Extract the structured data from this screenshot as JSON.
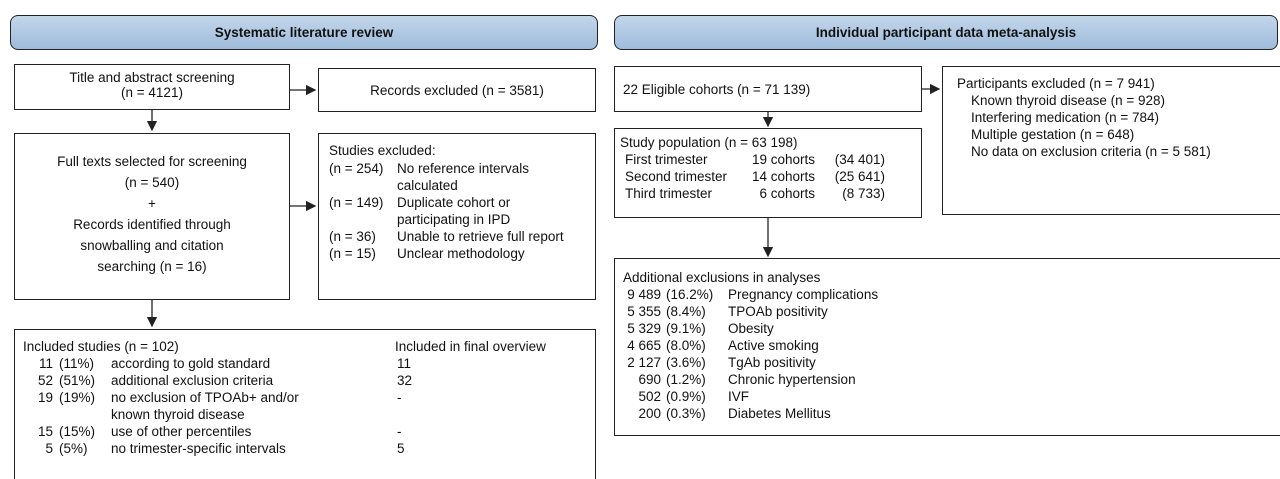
{
  "left": {
    "header": "Systematic literature review",
    "screening": {
      "title": "Title and abstract screening",
      "n": "(n = 4121)"
    },
    "records_excluded": "Records excluded (n = 3581)",
    "full_texts": {
      "title": "Full texts selected for screening",
      "n": "(n = 540)",
      "plus": "+",
      "records": "Records identified through snowballing and citation searching (n = 16)"
    },
    "studies_excluded": {
      "title": "Studies excluded:",
      "rows": [
        {
          "n": "(n = 254)",
          "reason": "No reference intervals calculated"
        },
        {
          "n": "(n = 149)",
          "reason": "Duplicate cohort or participating in IPD"
        },
        {
          "n": "(n = 36)",
          "reason": "Unable to retrieve full report"
        },
        {
          "n": "(n = 15)",
          "reason": "Unclear methodology"
        }
      ]
    },
    "included": {
      "title": "Included studies (n = 102)",
      "final_header": "Included in final overview",
      "rows": [
        {
          "count": "11",
          "pct": "(11%)",
          "desc": "according to gold standard",
          "final": "11"
        },
        {
          "count": "52",
          "pct": "(51%)",
          "desc": "additional exclusion criteria",
          "final": "32"
        },
        {
          "count": "19",
          "pct": "(19%)",
          "desc": "no exclusion of TPOAb+ and/or known thyroid disease",
          "final": "-"
        },
        {
          "count": "15",
          "pct": "(15%)",
          "desc": "use of other percentiles",
          "final": "-"
        },
        {
          "count": "5",
          "pct": "(5%)",
          "desc": "no trimester-specific intervals",
          "final": "5"
        }
      ]
    }
  },
  "right": {
    "header": "Individual participant data meta-analysis",
    "eligible": "22 Eligible cohorts (n = 71 139)",
    "participants_excluded": {
      "title": "Participants excluded (n = 7 941)",
      "items": [
        "Known thyroid disease (n = 928)",
        "Interfering medication (n = 784)",
        "Multiple gestation (n = 648)",
        "No data on exclusion criteria (n = 5 581)"
      ]
    },
    "study_population": {
      "title": "Study population (n = 63 198)",
      "rows": [
        {
          "stage": "First trimester",
          "cohorts": "19 cohorts",
          "n": "(34 401)"
        },
        {
          "stage": "Second trimester",
          "cohorts": "14 cohorts",
          "n": "(25 641)"
        },
        {
          "stage": "Third trimester",
          "cohorts": "6 cohorts",
          "n": "(8 733)"
        }
      ]
    },
    "additional": {
      "title": "Additional exclusions in analyses",
      "rows": [
        {
          "n": "9 489",
          "pct": "(16.2%)",
          "reason": "Pregnancy complications"
        },
        {
          "n": "5 355",
          "pct": "(8.4%)",
          "reason": "TPOAb positivity"
        },
        {
          "n": "5 329",
          "pct": "(9.1%)",
          "reason": "Obesity"
        },
        {
          "n": "4 665",
          "pct": "(8.0%)",
          "reason": "Active smoking"
        },
        {
          "n": "2 127",
          "pct": "(3.6%)",
          "reason": "TgAb positivity"
        },
        {
          "n": "690",
          "pct": "(1.2%)",
          "reason": "Chronic hypertension"
        },
        {
          "n": "502",
          "pct": "(0.9%)",
          "reason": "IVF"
        },
        {
          "n": "200",
          "pct": "(0.3%)",
          "reason": "Diabetes Mellitus"
        }
      ]
    }
  }
}
